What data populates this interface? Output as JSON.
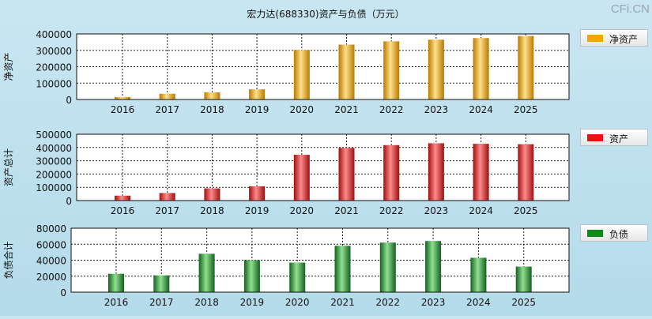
{
  "title": "宏力达(688330)资产与负债（万元）",
  "watermark": "CFi.CN",
  "chart_data": [
    {
      "type": "bar",
      "ylabel": "净资产",
      "legend": "净资产",
      "color": "#f0a400",
      "colors": {
        "light": "#ffe08a",
        "dark": "#b97a00"
      },
      "categories": [
        "2016",
        "2017",
        "2018",
        "2019",
        "2020",
        "2021",
        "2022",
        "2023",
        "2024",
        "2025"
      ],
      "values": [
        15000,
        35000,
        44000,
        62000,
        302000,
        335000,
        355000,
        365000,
        375000,
        388000
      ],
      "ylim": [
        0,
        400000
      ],
      "yticks": [
        0,
        100000,
        200000,
        300000,
        400000
      ],
      "grid": true,
      "legend_position": "right"
    },
    {
      "type": "bar",
      "ylabel": "资产总计",
      "legend": "资产",
      "color": "#e0201e",
      "colors": {
        "light": "#ff8a8a",
        "dark": "#9e0f0f"
      },
      "categories": [
        "2016",
        "2017",
        "2018",
        "2019",
        "2020",
        "2021",
        "2022",
        "2023",
        "2024",
        "2025"
      ],
      "values": [
        37000,
        57000,
        92000,
        108000,
        345000,
        397000,
        418000,
        432000,
        428000,
        425000
      ],
      "ylim": [
        0,
        500000
      ],
      "yticks": [
        0,
        100000,
        200000,
        300000,
        400000,
        500000
      ],
      "grid": true,
      "legend_position": "right"
    },
    {
      "type": "bar",
      "ylabel": "负债合计",
      "legend": "负债",
      "color": "#1f8a2e",
      "colors": {
        "light": "#8fe08f",
        "dark": "#156020"
      },
      "categories": [
        "2016",
        "2017",
        "2018",
        "2019",
        "2020",
        "2021",
        "2022",
        "2023",
        "2024",
        "2025"
      ],
      "values": [
        23000,
        21000,
        48000,
        40000,
        37000,
        58000,
        62000,
        64000,
        43000,
        32000
      ],
      "ylim": [
        0,
        80000
      ],
      "yticks": [
        0,
        20000,
        40000,
        60000,
        80000
      ],
      "grid": true,
      "legend_position": "right"
    }
  ]
}
